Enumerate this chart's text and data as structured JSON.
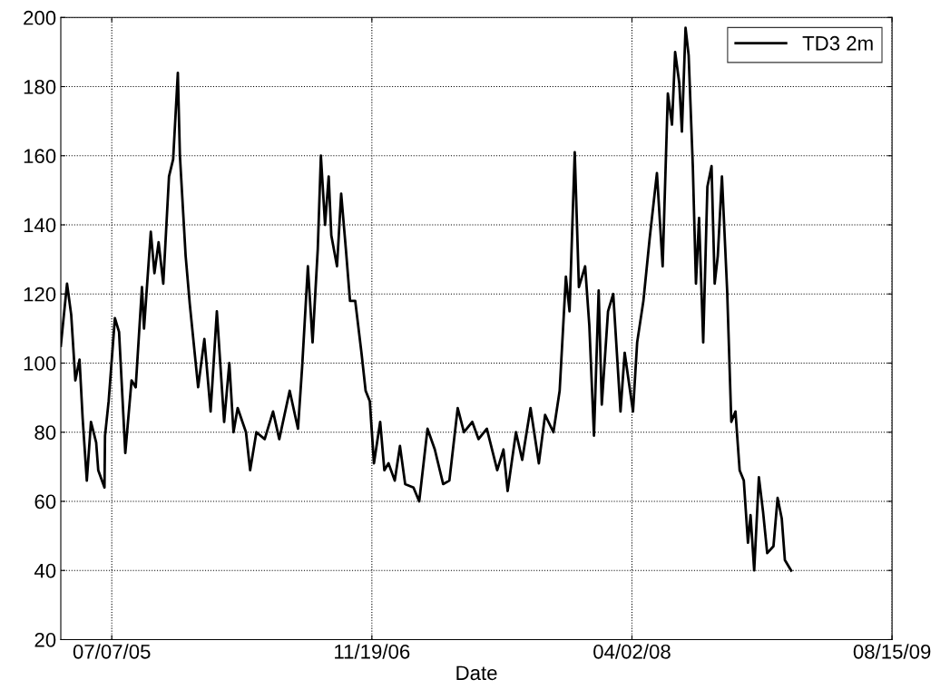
{
  "chart_data": {
    "type": "line",
    "xlabel": "Date",
    "legend": "top right",
    "grid": true,
    "line_style": "solid",
    "marker": "none",
    "xlim": [
      "2005-03-31",
      "2009-08-15"
    ],
    "xticks": [
      {
        "value": "2005-07-07",
        "label": "07/07/05"
      },
      {
        "value": "2006-11-19",
        "label": "11/19/06"
      },
      {
        "value": "2008-04-02",
        "label": "04/02/08"
      },
      {
        "value": "2009-08-15",
        "label": "08/15/09"
      }
    ],
    "ylim": [
      20,
      200
    ],
    "yticks": [
      20,
      40,
      60,
      80,
      100,
      120,
      140,
      160,
      180,
      200
    ],
    "series": [
      {
        "name": "TD3 2m",
        "color": "#000000",
        "x": [
          "2005-03-31",
          "2005-04-12",
          "2005-04-20",
          "2005-04-28",
          "2005-05-06",
          "2005-05-12",
          "2005-05-20",
          "2005-05-28",
          "2005-06-07",
          "2005-06-11",
          "2005-06-23",
          "2005-06-24",
          "2005-07-01",
          "2005-07-13",
          "2005-07-21",
          "2005-08-02",
          "2005-08-14",
          "2005-08-22",
          "2005-09-03",
          "2005-09-07",
          "2005-09-20",
          "2005-09-27",
          "2005-10-05",
          "2005-10-14",
          "2005-10-25",
          "2005-11-02",
          "2005-11-11",
          "2005-11-15",
          "2005-11-26",
          "2005-12-04",
          "2005-12-20",
          "2006-01-01",
          "2006-01-13",
          "2006-01-25",
          "2006-02-08",
          "2006-02-18",
          "2006-02-26",
          "2006-03-06",
          "2006-03-22",
          "2006-03-30",
          "2006-04-11",
          "2006-04-27",
          "2006-05-13",
          "2006-05-25",
          "2006-06-14",
          "2006-06-30",
          "2006-07-08",
          "2006-07-19",
          "2006-07-28",
          "2006-08-07",
          "2006-08-13",
          "2006-08-21",
          "2006-08-28",
          "2006-09-02",
          "2006-09-13",
          "2006-09-21",
          "2006-09-30",
          "2006-10-08",
          "2006-10-18",
          "2006-10-30",
          "2006-11-07",
          "2006-11-15",
          "2006-11-23",
          "2006-12-05",
          "2006-12-13",
          "2006-12-21",
          "2007-01-02",
          "2007-01-12",
          "2007-01-22",
          "2007-02-07",
          "2007-02-18",
          "2007-03-06",
          "2007-03-20",
          "2007-04-05",
          "2007-04-17",
          "2007-05-03",
          "2007-05-15",
          "2007-05-31",
          "2007-06-12",
          "2007-06-28",
          "2007-07-18",
          "2007-07-30",
          "2007-08-07",
          "2007-08-23",
          "2007-09-04",
          "2007-09-20",
          "2007-10-06",
          "2007-10-18",
          "2007-11-03",
          "2007-11-15",
          "2007-11-27",
          "2007-12-04",
          "2007-12-14",
          "2007-12-22",
          "2008-01-03",
          "2008-01-11",
          "2008-01-20",
          "2008-01-29",
          "2008-02-04",
          "2008-02-16",
          "2008-02-26",
          "2008-03-11",
          "2008-03-19",
          "2008-04-04",
          "2008-04-12",
          "2008-04-24",
          "2008-05-06",
          "2008-05-20",
          "2008-05-31",
          "2008-06-10",
          "2008-06-18",
          "2008-06-24",
          "2008-07-02",
          "2008-07-07",
          "2008-07-14",
          "2008-07-20",
          "2008-07-28",
          "2008-08-03",
          "2008-08-09",
          "2008-08-17",
          "2008-08-25",
          "2008-09-02",
          "2008-09-08",
          "2008-09-14",
          "2008-09-22",
          "2008-10-02",
          "2008-10-10",
          "2008-10-18",
          "2008-10-26",
          "2008-11-03",
          "2008-11-11",
          "2008-11-16",
          "2008-11-23",
          "2008-12-02",
          "2008-12-10",
          "2008-12-18",
          "2008-12-30",
          "2009-01-07",
          "2009-01-15",
          "2009-01-21",
          "2009-02-02"
        ],
        "values": [
          105,
          123,
          114,
          95,
          101,
          84,
          66,
          83,
          77,
          69,
          64,
          79,
          89,
          113,
          109,
          74,
          95,
          93,
          122,
          110,
          138,
          126,
          135,
          123,
          154,
          159,
          184,
          160,
          131,
          117,
          93,
          107,
          86,
          115,
          83,
          100,
          80,
          87,
          80,
          69,
          80,
          78,
          86,
          78,
          92,
          81,
          99,
          128,
          106,
          133,
          160,
          140,
          154,
          137,
          128,
          149,
          133,
          118,
          118,
          103,
          92,
          89,
          71,
          83,
          69,
          71,
          66,
          76,
          65,
          64,
          60,
          81,
          75,
          65,
          66,
          87,
          80,
          83,
          78,
          81,
          69,
          75,
          63,
          80,
          72,
          87,
          71,
          85,
          80,
          92,
          125,
          115,
          161,
          122,
          128,
          111,
          79,
          121,
          88,
          115,
          120,
          86,
          103,
          86,
          106,
          118,
          136,
          155,
          128,
          178,
          169,
          190,
          181,
          167,
          197,
          189,
          157,
          123,
          142,
          106,
          151,
          157,
          123,
          131,
          154,
          121,
          83,
          86,
          69,
          66,
          48,
          56,
          40,
          67,
          57,
          45,
          47,
          61,
          55,
          43,
          40
        ]
      }
    ]
  }
}
